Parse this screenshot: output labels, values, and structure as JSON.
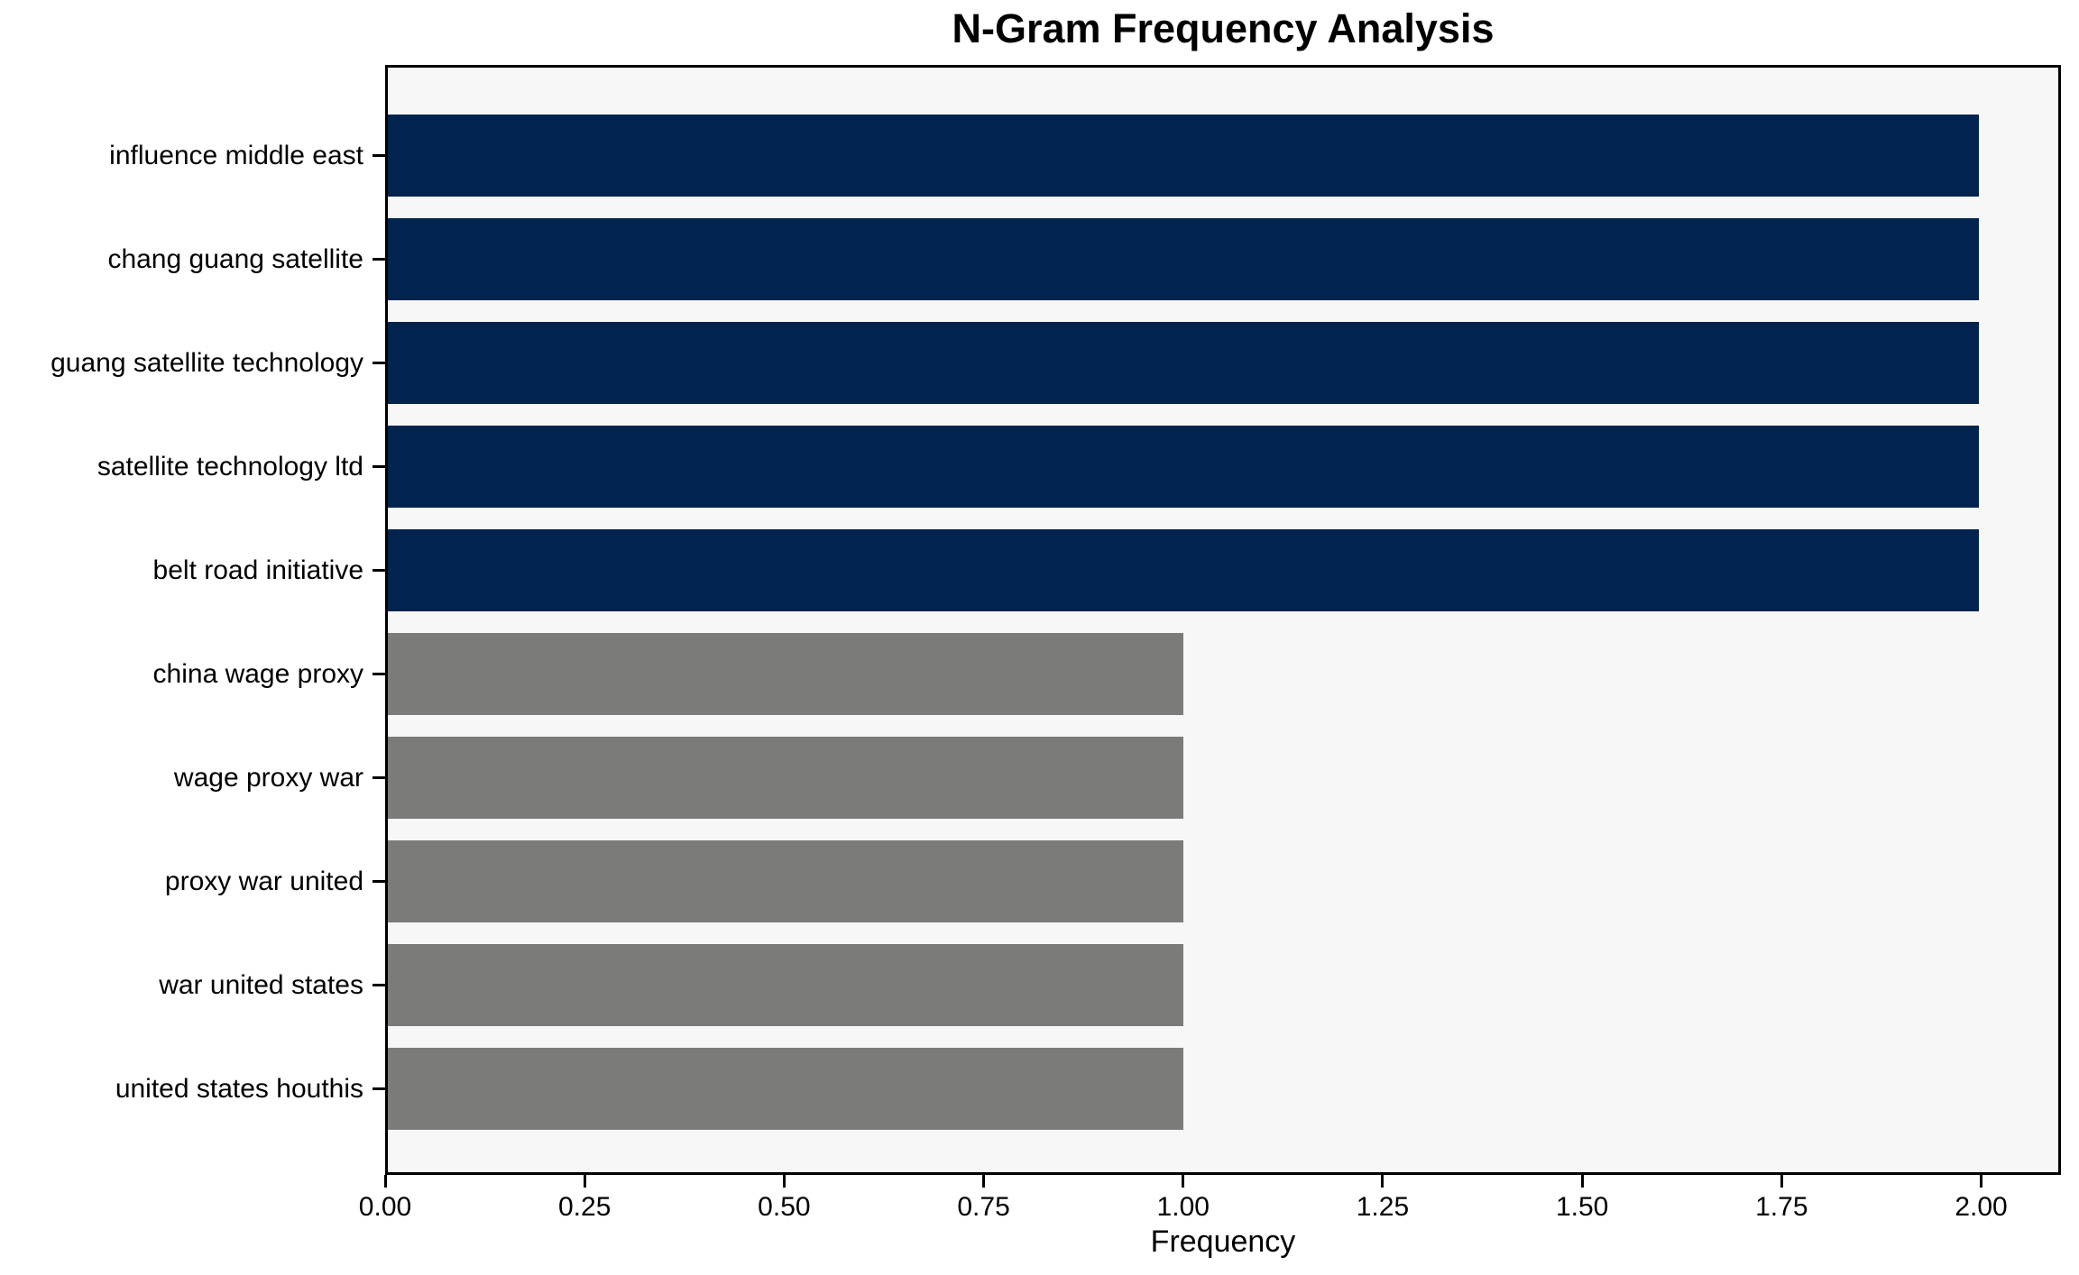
{
  "chart_data": {
    "type": "bar",
    "orientation": "horizontal",
    "title": "N-Gram Frequency Analysis",
    "xlabel": "Frequency",
    "ylabel": "",
    "categories": [
      "influence middle east",
      "chang guang satellite",
      "guang satellite technology",
      "satellite technology ltd",
      "belt road initiative",
      "china wage proxy",
      "wage proxy war",
      "proxy war united",
      "war united states",
      "united states houthis"
    ],
    "values": [
      2,
      2,
      2,
      2,
      2,
      1,
      1,
      1,
      1,
      1
    ],
    "bar_colors": [
      "#02234d",
      "#02234d",
      "#02234d",
      "#02234d",
      "#02234d",
      "#7b7b79",
      "#7b7b79",
      "#7b7b79",
      "#7b7b79",
      "#7b7b79"
    ],
    "xlim": [
      0,
      2.1
    ],
    "xticks": [
      {
        "value": 0.0,
        "label": "0.00"
      },
      {
        "value": 0.25,
        "label": "0.25"
      },
      {
        "value": 0.5,
        "label": "0.50"
      },
      {
        "value": 0.75,
        "label": "0.75"
      },
      {
        "value": 1.0,
        "label": "1.00"
      },
      {
        "value": 1.25,
        "label": "1.25"
      },
      {
        "value": 1.5,
        "label": "1.50"
      },
      {
        "value": 1.75,
        "label": "1.75"
      },
      {
        "value": 2.0,
        "label": "2.00"
      }
    ],
    "grid": false,
    "legend": null,
    "colors": {
      "highlight_bar": "#02234d",
      "muted_bar": "#7b7b79",
      "plot_background": "#f7f7f7",
      "figure_background": "#ffffff",
      "spine": "#000000",
      "text": "#000000"
    }
  }
}
